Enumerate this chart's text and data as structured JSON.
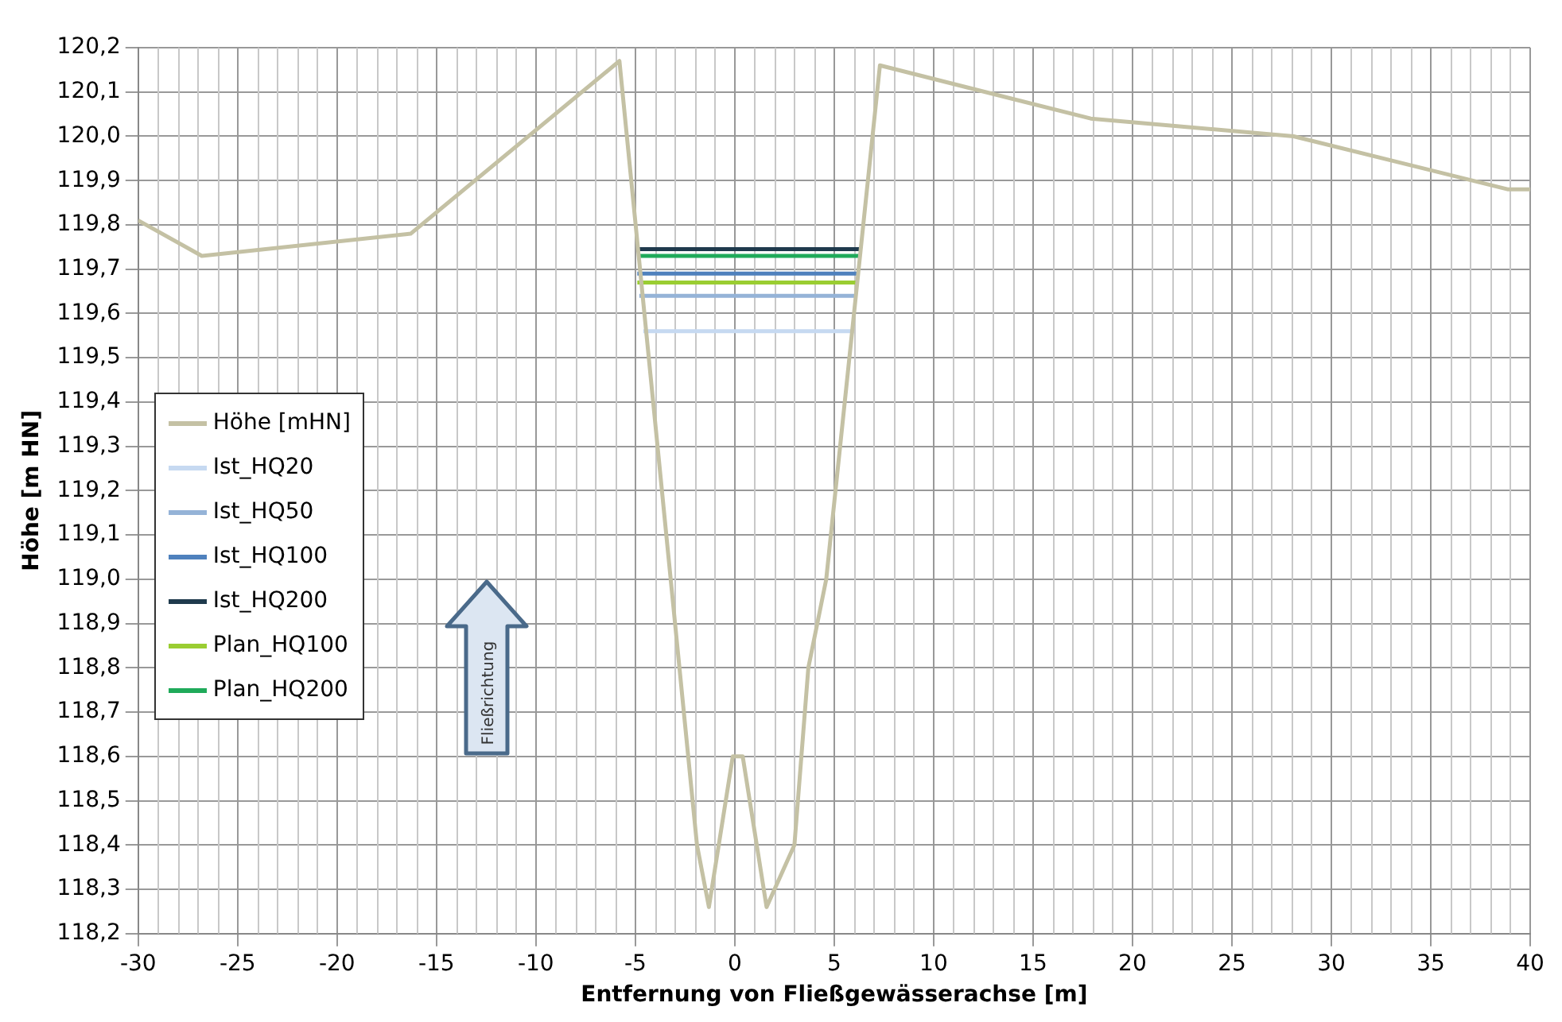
{
  "chart_data": {
    "type": "line",
    "xlabel": "Entfernung von Fließgewässerachse [m]",
    "ylabel": "Höhe [m HN]",
    "annotations": [
      "Fließrichtung"
    ],
    "xlim": [
      -30,
      40
    ],
    "xticks": [
      -30,
      -25,
      -20,
      -15,
      -10,
      -5,
      0,
      5,
      10,
      15,
      20,
      25,
      30,
      35,
      40
    ],
    "ylim": [
      118.2,
      120.2
    ],
    "yticks": [
      {
        "value": 118.2,
        "label": "118,2"
      },
      {
        "value": 118.3,
        "label": "118,3"
      },
      {
        "value": 118.4,
        "label": "118,4"
      },
      {
        "value": 118.5,
        "label": "118,5"
      },
      {
        "value": 118.6,
        "label": "118,6"
      },
      {
        "value": 118.7,
        "label": "118,7"
      },
      {
        "value": 118.8,
        "label": "118,8"
      },
      {
        "value": 118.9,
        "label": "118,9"
      },
      {
        "value": 119.0,
        "label": "119,0"
      },
      {
        "value": 119.1,
        "label": "119,1"
      },
      {
        "value": 119.2,
        "label": "119,2"
      },
      {
        "value": 119.3,
        "label": "119,3"
      },
      {
        "value": 119.4,
        "label": "119,4"
      },
      {
        "value": 119.5,
        "label": "119,5"
      },
      {
        "value": 119.6,
        "label": "119,6"
      },
      {
        "value": 119.7,
        "label": "119,7"
      },
      {
        "value": 119.8,
        "label": "119,8"
      },
      {
        "value": 119.9,
        "label": "119,9"
      },
      {
        "value": 120.0,
        "label": "120,0"
      },
      {
        "value": 120.1,
        "label": "120,1"
      },
      {
        "value": 120.2,
        "label": "120,2"
      }
    ],
    "grid": true,
    "legend": "left",
    "marker": "none",
    "line_style": "solid",
    "series": [
      {
        "name": "Höhe [mHN]",
        "color": "#c4c1a4",
        "x": [
          -30,
          -26.8,
          -16.3,
          -5.8,
          -1.9,
          -1.3,
          -0.1,
          0.4,
          1.6,
          3.0,
          3.7,
          4.6,
          7.3,
          17.9,
          28.1,
          38.9,
          40
        ],
        "values": [
          119.81,
          119.73,
          119.78,
          120.17,
          118.4,
          118.26,
          118.6,
          118.6,
          118.26,
          118.4,
          118.8,
          119.0,
          120.16,
          120.04,
          120.0,
          119.88,
          119.88
        ]
      },
      {
        "name": "Ist_HQ20",
        "color": "#c6d9f1",
        "x": [
          -4.6,
          6.0
        ],
        "values": [
          119.56,
          119.56
        ]
      },
      {
        "name": "Ist_HQ50",
        "color": "#95b3d7",
        "x": [
          -4.8,
          6.1
        ],
        "values": [
          119.64,
          119.64
        ]
      },
      {
        "name": "Ist_HQ100",
        "color": "#4f81bd",
        "x": [
          -4.9,
          6.2
        ],
        "values": [
          119.69,
          119.69
        ]
      },
      {
        "name": "Ist_HQ200",
        "color": "#1f3a4d",
        "x": [
          -4.9,
          6.3
        ],
        "values": [
          119.745,
          119.745
        ]
      },
      {
        "name": "Plan_HQ100",
        "color": "#9acd32",
        "x": [
          -4.9,
          6.2
        ],
        "values": [
          119.67,
          119.67
        ]
      },
      {
        "name": "Plan_HQ200",
        "color": "#1faa5a",
        "x": [
          -4.9,
          6.3
        ],
        "values": [
          119.73,
          119.73
        ]
      }
    ]
  }
}
